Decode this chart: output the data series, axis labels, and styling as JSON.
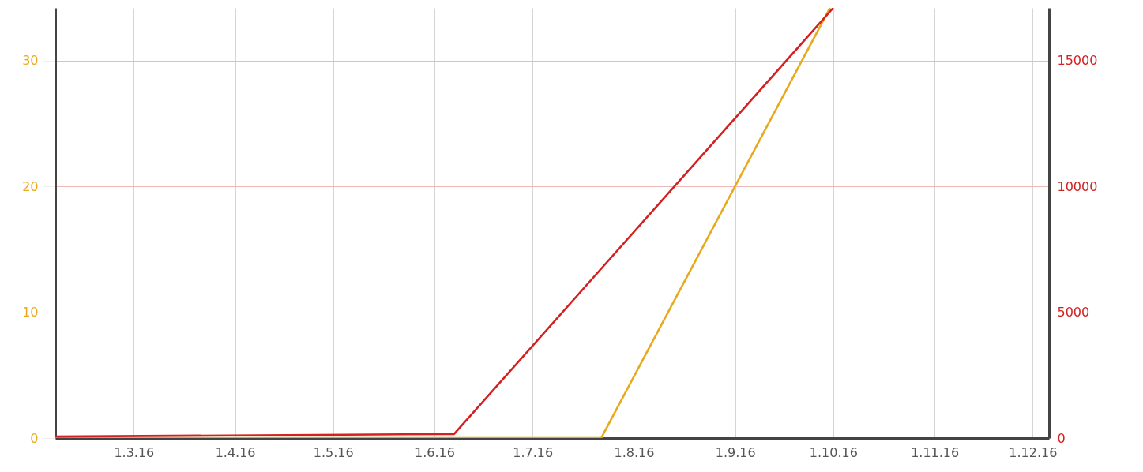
{
  "chart_data": {
    "type": "line",
    "grid": true,
    "xlim": [
      "2016-02-06",
      "2016-12-06"
    ],
    "xticks": [
      {
        "value": "2016-03-01",
        "label": "1.3.16"
      },
      {
        "value": "2016-04-01",
        "label": "1.4.16"
      },
      {
        "value": "2016-05-01",
        "label": "1.5.16"
      },
      {
        "value": "2016-06-01",
        "label": "1.6.16"
      },
      {
        "value": "2016-07-01",
        "label": "1.7.16"
      },
      {
        "value": "2016-08-01",
        "label": "1.8.16"
      },
      {
        "value": "2016-09-01",
        "label": "1.9.16"
      },
      {
        "value": "2016-10-01",
        "label": "1.10.16"
      },
      {
        "value": "2016-11-01",
        "label": "1.11.16"
      },
      {
        "value": "2016-12-01",
        "label": "1.12.16"
      }
    ],
    "ylim": [
      0,
      34.2
    ],
    "yticks": [
      0,
      10,
      20,
      30
    ],
    "y2lim": [
      0,
      17100
    ],
    "y2ticks": [
      0,
      5000,
      10000,
      15000
    ],
    "series": [
      {
        "color": "#e8a91c",
        "x": [
          "2016-02-06",
          "2016-07-22",
          "2016-09-30"
        ],
        "values": [
          0,
          0,
          34.2
        ]
      },
      {
        "color": "#d42020",
        "axis": "y2",
        "x": [
          "2016-02-06",
          "2016-06-07",
          "2016-10-01"
        ],
        "values": [
          60,
          160,
          17100
        ]
      }
    ]
  }
}
